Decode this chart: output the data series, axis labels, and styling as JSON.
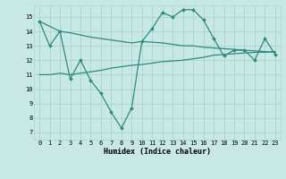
{
  "x": [
    0,
    1,
    2,
    3,
    4,
    5,
    6,
    7,
    8,
    9,
    10,
    11,
    12,
    13,
    14,
    15,
    16,
    17,
    18,
    19,
    20,
    21,
    22,
    23
  ],
  "line_jagged": [
    14.7,
    13.0,
    14.0,
    10.7,
    12.0,
    10.6,
    9.7,
    8.4,
    7.3,
    8.7,
    13.3,
    14.2,
    15.3,
    15.0,
    15.5,
    15.5,
    14.8,
    13.5,
    12.3,
    12.7,
    12.7,
    12.0,
    13.5,
    12.4
  ],
  "line_top": [
    14.7,
    14.35,
    14.0,
    13.9,
    13.75,
    13.6,
    13.5,
    13.4,
    13.3,
    13.2,
    13.3,
    13.25,
    13.2,
    13.1,
    13.0,
    13.0,
    12.9,
    12.85,
    12.8,
    12.75,
    12.7,
    12.65,
    12.6,
    12.55
  ],
  "line_bottom": [
    11.0,
    11.0,
    11.1,
    11.0,
    11.1,
    11.2,
    11.3,
    11.45,
    11.55,
    11.65,
    11.7,
    11.8,
    11.9,
    11.95,
    12.0,
    12.1,
    12.2,
    12.35,
    12.4,
    12.45,
    12.5,
    12.55,
    12.55,
    12.6
  ],
  "line_color": "#2e8b7a",
  "bg_color": "#c8e8e5",
  "grid_color": "#aad4d0",
  "ylim": [
    6.5,
    15.8
  ],
  "xlim": [
    -0.5,
    23.5
  ],
  "yticks": [
    7,
    8,
    9,
    10,
    11,
    12,
    13,
    14,
    15
  ],
  "xticks": [
    0,
    1,
    2,
    3,
    4,
    5,
    6,
    7,
    8,
    9,
    10,
    11,
    12,
    13,
    14,
    15,
    16,
    17,
    18,
    19,
    20,
    21,
    22,
    23
  ],
  "xlabel": "Humidex (Indice chaleur)",
  "marker_size": 2.0,
  "line_width": 0.9,
  "tick_fontsize": 5.0,
  "xlabel_fontsize": 6.0
}
